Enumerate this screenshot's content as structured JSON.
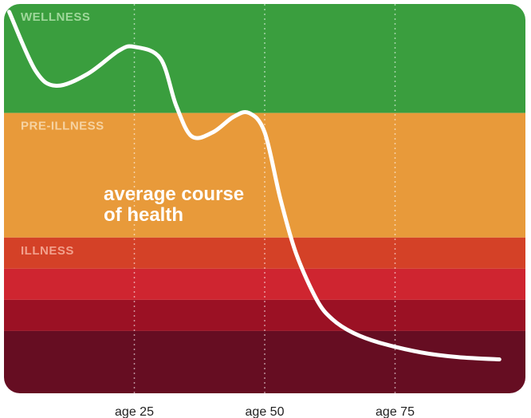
{
  "chart_data": {
    "type": "line",
    "title": "",
    "xlabel": "",
    "ylabel": "",
    "x_ticks": [
      {
        "value": 25,
        "label": "age 25"
      },
      {
        "value": 50,
        "label": "age 50"
      },
      {
        "value": 75,
        "label": "age 75"
      }
    ],
    "xlim": [
      0,
      100
    ],
    "ylim": [
      0,
      100
    ],
    "zones": [
      {
        "label": "WELLNESS",
        "from": 72,
        "to": 100,
        "color": "#3a9e3e",
        "label_color": "#9fd89a"
      },
      {
        "label": "PRE-ILLNESS",
        "from": 40,
        "to": 72,
        "color": "#e89a3a",
        "label_color": "#f6d3a2"
      },
      {
        "label": "ILLNESS",
        "from": 32,
        "to": 40,
        "color": "#d44127",
        "label_color": "#f2a08c"
      },
      {
        "label": "",
        "from": 24,
        "to": 32,
        "color": "#cf2530",
        "label_color": ""
      },
      {
        "label": "",
        "from": 16,
        "to": 24,
        "color": "#9b1124",
        "label_color": ""
      },
      {
        "label": "",
        "from": 0,
        "to": 16,
        "color": "#660d22",
        "label_color": ""
      }
    ],
    "series": [
      {
        "name": "",
        "color": "#ffffff",
        "x": [
          1,
          6,
          10,
          16,
          22,
          25,
          30,
          33,
          36,
          40,
          44,
          47,
          50,
          53,
          56,
          60,
          63,
          67,
          72,
          80,
          87,
          95
        ],
        "y": [
          98,
          83,
          79,
          82,
          88,
          89,
          86,
          74,
          66,
          67,
          71,
          72,
          67,
          50,
          36,
          24,
          19,
          15.5,
          13,
          10.5,
          9.3,
          8.7
        ]
      }
    ],
    "annotations": [
      {
        "text_lines": [
          "average course",
          "of health"
        ]
      }
    ],
    "gridlines": "vertical-dotted"
  }
}
